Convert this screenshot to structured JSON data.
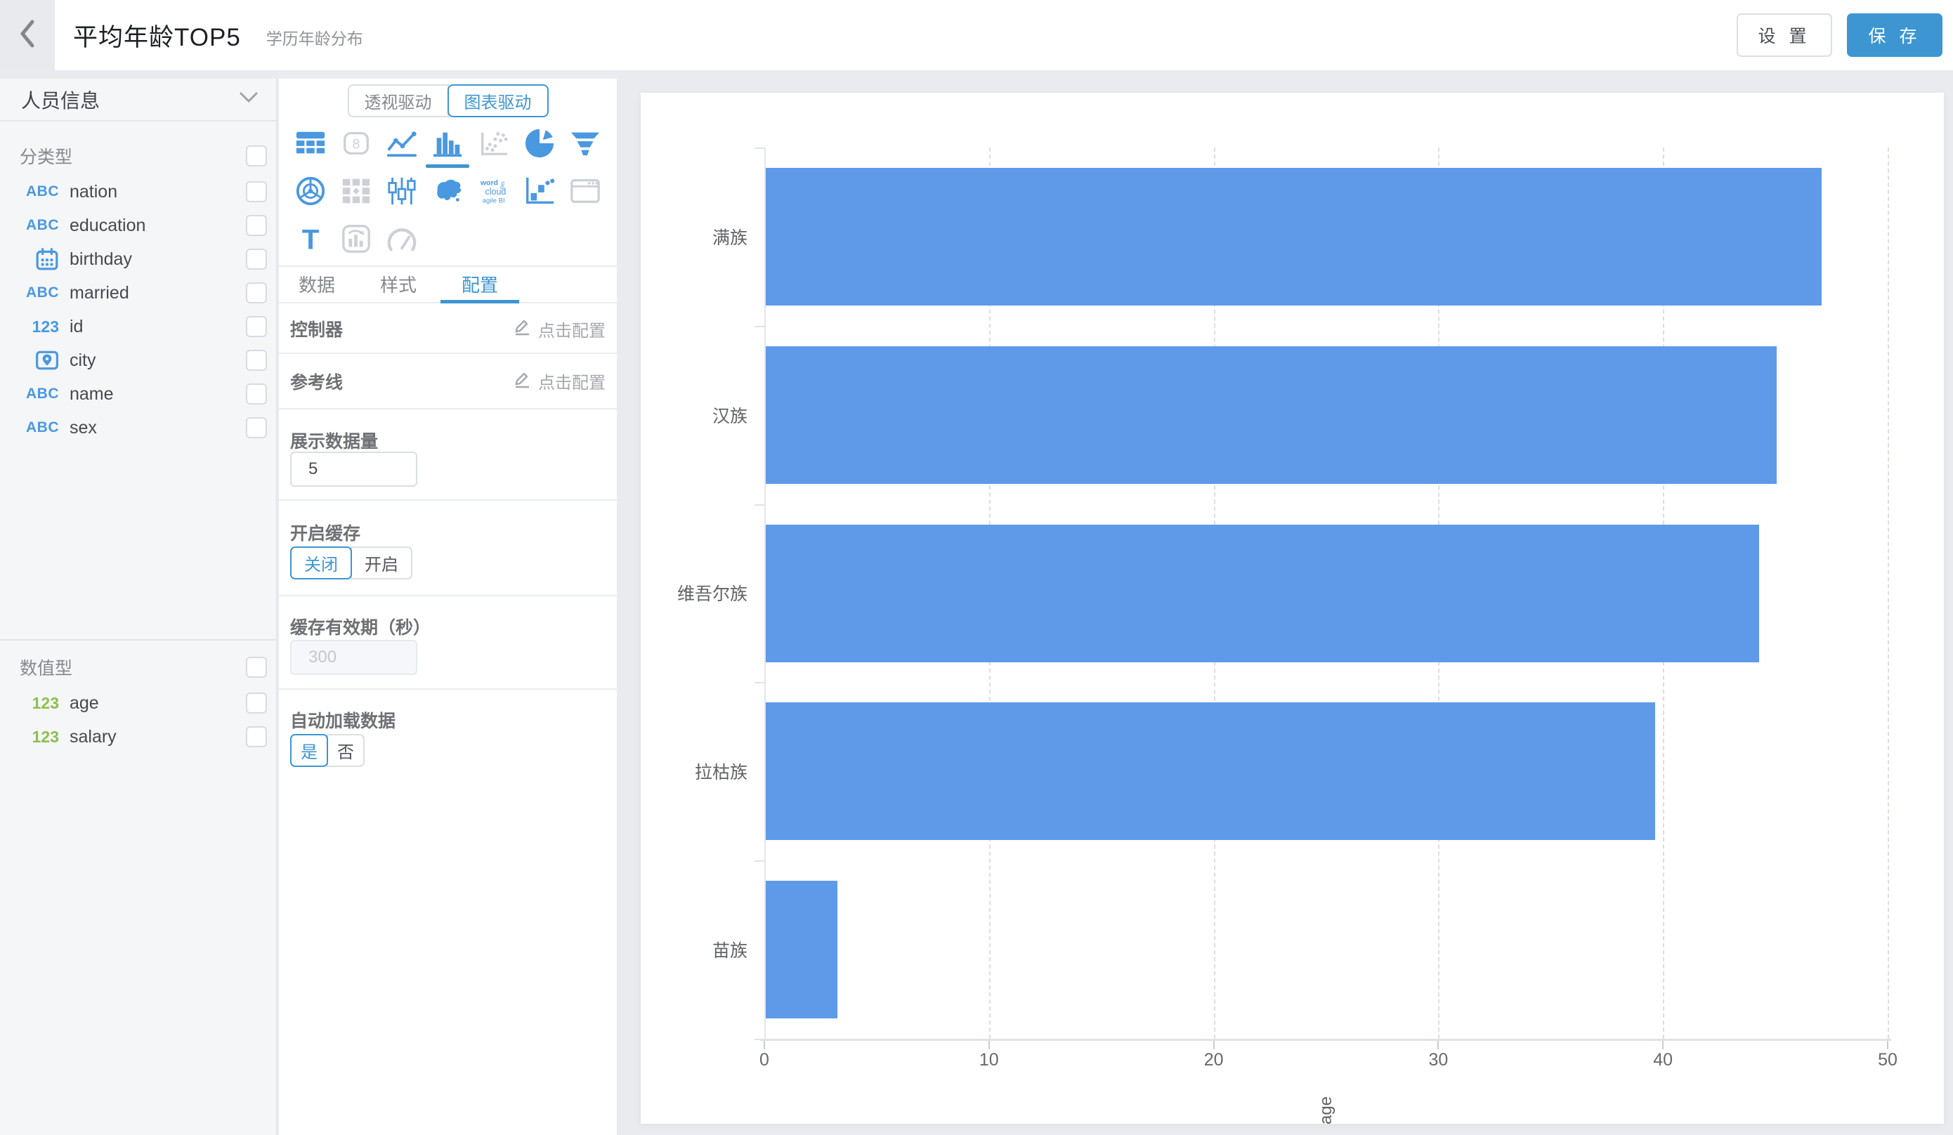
{
  "colors": {
    "accent": "#3D96D2",
    "bar": "#5F9AE9",
    "icon_blue": "#4A98E0",
    "icon_gray": "#CDD0D6",
    "green": "#8CBF4D"
  },
  "header": {
    "title": "平均年龄TOP5",
    "subtitle": "学历年龄分布",
    "settings_label": "设 置",
    "save_label": "保 存"
  },
  "sidebar": {
    "dataset_name": "人员信息",
    "sections": [
      {
        "title": "分类型",
        "fields": [
          {
            "icon": "abc",
            "label": "nation"
          },
          {
            "icon": "abc",
            "label": "education"
          },
          {
            "icon": "calendar",
            "label": "birthday"
          },
          {
            "icon": "abc",
            "label": "married"
          },
          {
            "icon": "num-blue",
            "label": "id"
          },
          {
            "icon": "location",
            "label": "city"
          },
          {
            "icon": "abc",
            "label": "name"
          },
          {
            "icon": "abc",
            "label": "sex"
          }
        ]
      },
      {
        "title": "数值型",
        "fields": [
          {
            "icon": "num-green",
            "label": "age"
          },
          {
            "icon": "num-green",
            "label": "salary"
          }
        ]
      }
    ]
  },
  "panel": {
    "mode": {
      "options": [
        "透视驱动",
        "图表驱动"
      ],
      "selected": 1
    },
    "chart_types": [
      {
        "name": "table",
        "style": "blue"
      },
      {
        "name": "number-card",
        "style": "gray",
        "glyph_text": "8"
      },
      {
        "name": "line-chart",
        "style": "blue"
      },
      {
        "name": "bar-chart",
        "style": "blue",
        "selected": true
      },
      {
        "name": "scatter",
        "style": "gray"
      },
      {
        "name": "pie-chart",
        "style": "blue"
      },
      {
        "name": "funnel",
        "style": "blue"
      },
      {
        "name": "radar",
        "style": "blue"
      },
      {
        "name": "crosstab",
        "style": "gray"
      },
      {
        "name": "candlestick",
        "style": "blue"
      },
      {
        "name": "china-map",
        "style": "blue"
      },
      {
        "name": "word-cloud",
        "style": "blue",
        "glyph_text": "word cloud agile BI"
      },
      {
        "name": "waterfall",
        "style": "blue"
      },
      {
        "name": "web-frame",
        "style": "gray"
      },
      {
        "name": "text-card",
        "style": "blue",
        "glyph_text": "T"
      },
      {
        "name": "combo-chart",
        "style": "gray"
      },
      {
        "name": "gauge",
        "style": "gray"
      }
    ],
    "tabs": [
      "数据",
      "样式",
      "配置"
    ],
    "active_tab": 2,
    "config": {
      "controller_label": "控制器",
      "controller_action": "点击配置",
      "refline_label": "参考线",
      "refline_action": "点击配置",
      "display_count_label": "展示数据量",
      "display_count_value": "5",
      "cache_label": "开启缓存",
      "cache_options": [
        "关闭",
        "开启"
      ],
      "cache_selected": 0,
      "cache_ttl_label": "缓存有效期（秒）",
      "cache_ttl_value": "300",
      "autoload_label": "自动加载数据",
      "autoload_options": [
        "是",
        "否"
      ],
      "autoload_selected": 0
    }
  },
  "chart_data": {
    "type": "bar",
    "orientation": "horizontal",
    "categories": [
      "满族",
      "汉族",
      "维吾尔族",
      "拉枯族",
      "苗族"
    ],
    "values": [
      47,
      45,
      44.2,
      39.6,
      3.2
    ],
    "xlabel": "age",
    "xlim": [
      0,
      50
    ],
    "xticks": [
      0,
      10,
      20,
      30,
      40,
      50
    ],
    "grid": true,
    "legend": false
  }
}
